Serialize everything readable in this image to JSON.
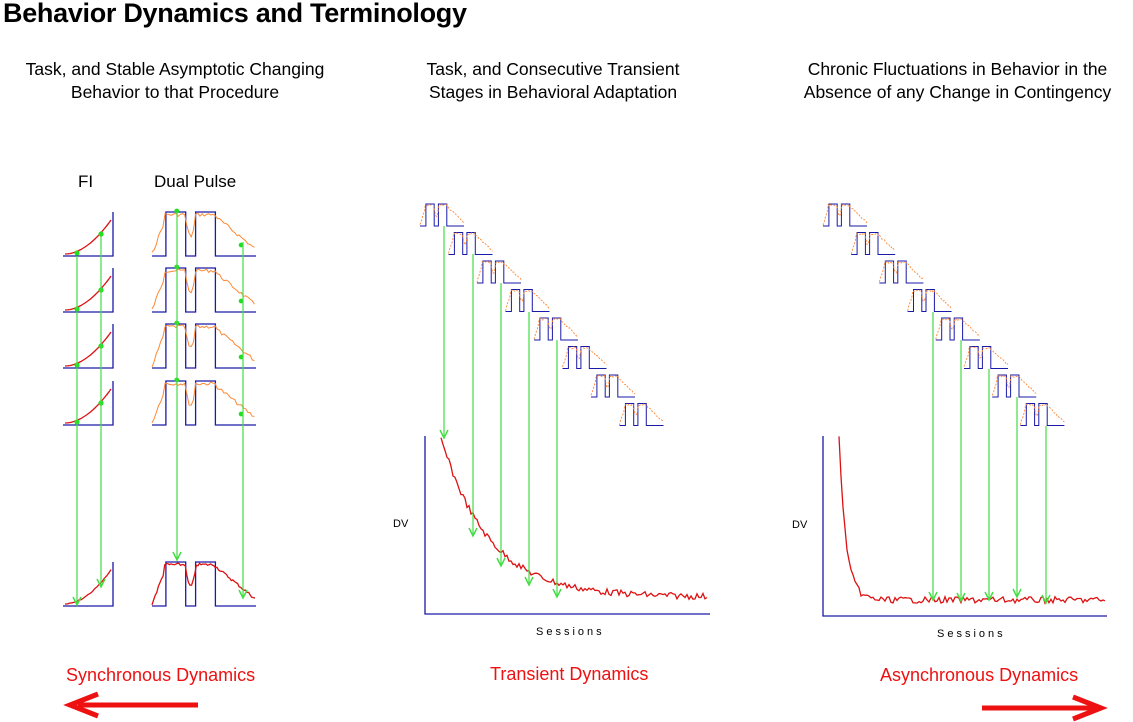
{
  "title": "Behavior Dynamics and Terminology",
  "panels": {
    "left": {
      "header_line1": "Task, and Stable Asymptotic Changing",
      "header_line2": "Behavior to that Procedure",
      "col1_label": "FI",
      "col2_label": "Dual Pulse",
      "dynamics_label": "Synchronous Dynamics"
    },
    "middle": {
      "header_line1": "Task, and Consecutive Transient",
      "header_line2": "Stages in Behavioral Adaptation",
      "ylabel": "DV",
      "xlabel": "Sessions",
      "dynamics_label": "Transient Dynamics"
    },
    "right": {
      "header_line1": "Chronic Fluctuations in Behavior in the",
      "header_line2": "Absence of any Change in Contingency",
      "ylabel": "DV",
      "xlabel": "Sessions",
      "dynamics_label": "Asynchronous Dynamics"
    }
  },
  "colors": {
    "axis_blue": "#1a1aa8",
    "curve_red": "#dd1111",
    "arrow_green": "#44dd44",
    "dot_green": "#22dd22",
    "orange": "#ff8833",
    "label_red": "#ee1111"
  }
}
